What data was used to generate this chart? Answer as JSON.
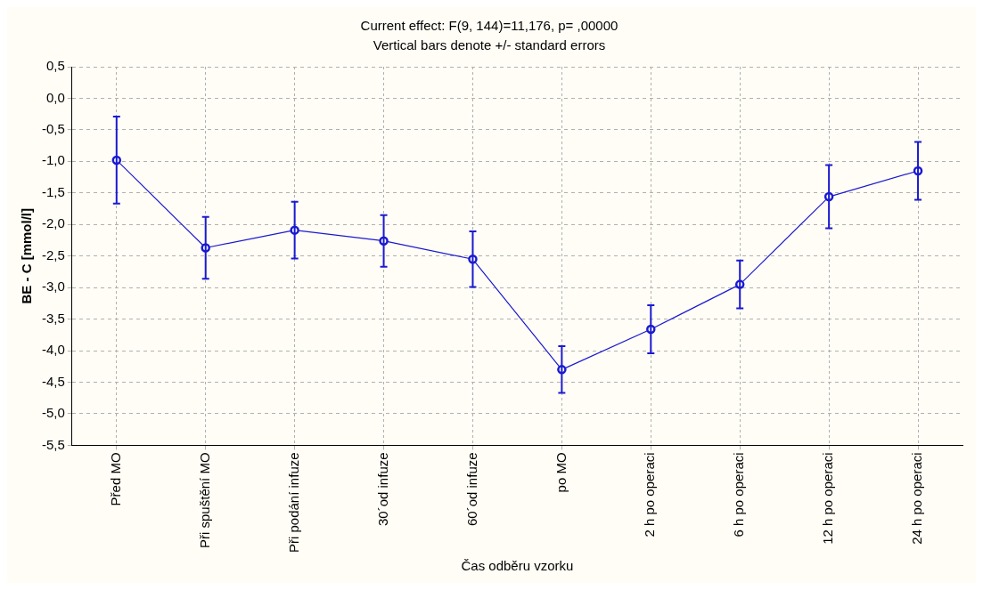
{
  "chart_data": {
    "type": "line",
    "title": "Current effect: F(9, 144)=11,176, p= ,00000",
    "subtitle": "Vertical bars denote +/- standard errors",
    "xlabel": "Čas odběru vzorku",
    "ylabel": "BE - C [mmol/l]",
    "categories": [
      "Před MO",
      "Při spuštění MO",
      "Při podání infuze",
      "30´od infuze",
      "60´od infuze",
      "po MO",
      "2 h po operaci",
      "6 h po operaci",
      "12 h po operaci",
      "24 h po operaci"
    ],
    "series": [
      {
        "color": "#1a1ad0",
        "values": [
          -0.98,
          -2.37,
          -2.09,
          -2.26,
          -2.55,
          -4.3,
          -3.66,
          -2.95,
          -1.56,
          -1.15
        ],
        "errors": [
          0.69,
          0.49,
          0.45,
          0.41,
          0.44,
          0.37,
          0.38,
          0.38,
          0.5,
          0.46
        ]
      }
    ],
    "ylim": [
      -5.5,
      0.5
    ],
    "yticks": [
      {
        "value": 0.5,
        "label": "0,5"
      },
      {
        "value": 0,
        "label": "0,0"
      },
      {
        "value": -0.5,
        "label": "-0,5"
      },
      {
        "value": -1,
        "label": "-1,0"
      },
      {
        "value": -1.5,
        "label": "-1,5"
      },
      {
        "value": -2,
        "label": "-2,0"
      },
      {
        "value": -2.5,
        "label": "-2,5"
      },
      {
        "value": -3,
        "label": "-3,0"
      },
      {
        "value": -3.5,
        "label": "-3,5"
      },
      {
        "value": -4,
        "label": "-4,0"
      },
      {
        "value": -4.5,
        "label": "-4,5"
      },
      {
        "value": -5,
        "label": "-5,0"
      },
      {
        "value": -5.5,
        "label": "-5,5"
      }
    ],
    "grid": true,
    "legend": false,
    "marker": "circle",
    "line_style": "solid"
  }
}
